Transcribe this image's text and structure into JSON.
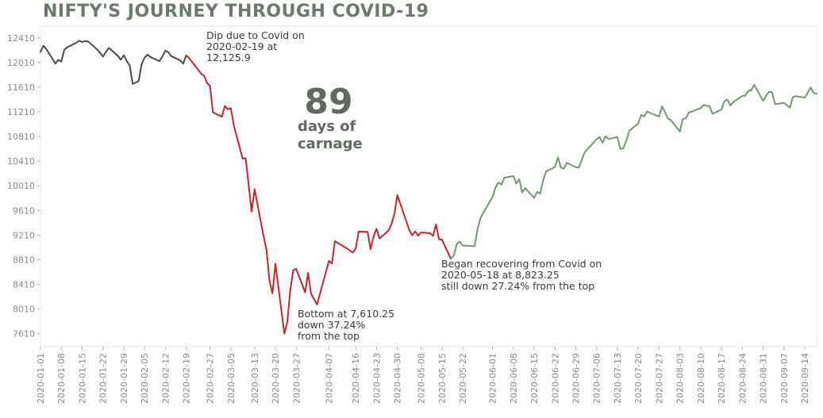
{
  "chart_data": {
    "type": "line",
    "title": "NIFTY'S JOURNEY THROUGH COVID-19",
    "xlabel": "",
    "ylabel": "",
    "ylim": [
      7400,
      12600
    ],
    "yticks": [
      7610,
      8010,
      8410,
      8810,
      9210,
      9610,
      10010,
      10410,
      10810,
      11210,
      11610,
      12010,
      12410
    ],
    "xticks": [
      "2020-01-01",
      "2020-01-08",
      "2020-01-15",
      "2020-01-22",
      "2020-01-29",
      "2020-02-05",
      "2020-02-12",
      "2020-02-19",
      "2020-02-27",
      "2020-03-05",
      "2020-03-13",
      "2020-03-20",
      "2020-03-27",
      "2020-04-07",
      "2020-04-16",
      "2020-04-23",
      "2020-04-30",
      "2020-05-08",
      "2020-05-15",
      "2020-05-22",
      "2020-06-01",
      "2020-06-08",
      "2020-06-15",
      "2020-06-22",
      "2020-06-29",
      "2020-07-06",
      "2020-07-13",
      "2020-07-20",
      "2020-07-27",
      "2020-08-03",
      "2020-08-10",
      "2020-08-17",
      "2020-08-24",
      "2020-08-31",
      "2020-09-07",
      "2020-09-14"
    ],
    "grid": false,
    "series": [
      {
        "color": "#4a4a4a",
        "points": [
          [
            "2020-01-01",
            12182
          ],
          [
            "2020-01-02",
            12282
          ],
          [
            "2020-01-03",
            12227
          ],
          [
            "2020-01-06",
            11993
          ],
          [
            "2020-01-07",
            12053
          ],
          [
            "2020-01-08",
            12025
          ],
          [
            "2020-01-09",
            12216
          ],
          [
            "2020-01-10",
            12257
          ],
          [
            "2020-01-13",
            12330
          ],
          [
            "2020-01-14",
            12363
          ],
          [
            "2020-01-15",
            12344
          ],
          [
            "2020-01-16",
            12356
          ],
          [
            "2020-01-17",
            12353
          ],
          [
            "2020-01-20",
            12224
          ],
          [
            "2020-01-21",
            12170
          ],
          [
            "2020-01-22",
            12107
          ],
          [
            "2020-01-23",
            12180
          ],
          [
            "2020-01-24",
            12248
          ],
          [
            "2020-01-27",
            12119
          ],
          [
            "2020-01-28",
            12055
          ],
          [
            "2020-01-29",
            12129
          ],
          [
            "2020-01-30",
            12036
          ],
          [
            "2020-01-31",
            11962
          ],
          [
            "2020-02-01",
            11662
          ],
          [
            "2020-02-03",
            11708
          ],
          [
            "2020-02-04",
            11980
          ],
          [
            "2020-02-05",
            12090
          ],
          [
            "2020-02-06",
            12137
          ],
          [
            "2020-02-07",
            12099
          ],
          [
            "2020-02-10",
            12032
          ],
          [
            "2020-02-11",
            12108
          ],
          [
            "2020-02-12",
            12202
          ],
          [
            "2020-02-13",
            12175
          ],
          [
            "2020-02-14",
            12113
          ],
          [
            "2020-02-17",
            12046
          ],
          [
            "2020-02-18",
            11993
          ],
          [
            "2020-02-19",
            12126
          ]
        ]
      },
      {
        "color": "#c8242b",
        "points": [
          [
            "2020-02-19",
            12126
          ],
          [
            "2020-02-20",
            12080
          ],
          [
            "2020-02-24",
            11830
          ],
          [
            "2020-02-25",
            11798
          ],
          [
            "2020-02-26",
            11678
          ],
          [
            "2020-02-27",
            11633
          ],
          [
            "2020-02-28",
            11202
          ],
          [
            "2020-03-02",
            11132
          ],
          [
            "2020-03-03",
            11304
          ],
          [
            "2020-03-04",
            11251
          ],
          [
            "2020-03-05",
            11270
          ],
          [
            "2020-03-06",
            10990
          ],
          [
            "2020-03-09",
            10451
          ],
          [
            "2020-03-10",
            10458
          ],
          [
            "2020-03-12",
            9590
          ],
          [
            "2020-03-13",
            9955
          ],
          [
            "2020-03-16",
            9197
          ],
          [
            "2020-03-17",
            8967
          ],
          [
            "2020-03-18",
            8469
          ],
          [
            "2020-03-19",
            8264
          ],
          [
            "2020-03-20",
            8745
          ],
          [
            "2020-03-23",
            7610
          ],
          [
            "2020-03-24",
            7801
          ],
          [
            "2020-03-25",
            8318
          ],
          [
            "2020-03-26",
            8641
          ],
          [
            "2020-03-27",
            8660
          ],
          [
            "2020-03-30",
            8281
          ],
          [
            "2020-03-31",
            8598
          ],
          [
            "2020-04-01",
            8254
          ],
          [
            "2020-04-03",
            8084
          ],
          [
            "2020-04-07",
            8792
          ],
          [
            "2020-04-08",
            8748
          ],
          [
            "2020-04-09",
            9112
          ],
          [
            "2020-04-13",
            8994
          ],
          [
            "2020-04-15",
            8926
          ],
          [
            "2020-04-16",
            8993
          ],
          [
            "2020-04-17",
            9267
          ],
          [
            "2020-04-20",
            9262
          ],
          [
            "2020-04-21",
            8981
          ],
          [
            "2020-04-22",
            9187
          ],
          [
            "2020-04-23",
            9314
          ],
          [
            "2020-04-24",
            9154
          ],
          [
            "2020-04-27",
            9282
          ],
          [
            "2020-04-28",
            9381
          ],
          [
            "2020-04-29",
            9553
          ],
          [
            "2020-04-30",
            9860
          ],
          [
            "2020-05-04",
            9294
          ],
          [
            "2020-05-05",
            9206
          ],
          [
            "2020-05-06",
            9270
          ],
          [
            "2020-05-07",
            9200
          ],
          [
            "2020-05-08",
            9252
          ],
          [
            "2020-05-11",
            9240
          ],
          [
            "2020-05-12",
            9197
          ],
          [
            "2020-05-13",
            9384
          ],
          [
            "2020-05-14",
            9142
          ],
          [
            "2020-05-15",
            9137
          ],
          [
            "2020-05-18",
            8823
          ]
        ]
      },
      {
        "color": "#6f9a6f",
        "points": [
          [
            "2020-05-18",
            8823
          ],
          [
            "2020-05-19",
            8880
          ],
          [
            "2020-05-20",
            9067
          ],
          [
            "2020-05-21",
            9106
          ],
          [
            "2020-05-22",
            9039
          ],
          [
            "2020-05-26",
            9030
          ],
          [
            "2020-05-27",
            9315
          ],
          [
            "2020-05-28",
            9490
          ],
          [
            "2020-05-29",
            9580
          ],
          [
            "2020-06-01",
            9826
          ],
          [
            "2020-06-02",
            9980
          ],
          [
            "2020-06-03",
            10062
          ],
          [
            "2020-06-04",
            10029
          ],
          [
            "2020-06-05",
            10142
          ],
          [
            "2020-06-08",
            10167
          ],
          [
            "2020-06-09",
            10046
          ],
          [
            "2020-06-10",
            10116
          ],
          [
            "2020-06-11",
            9902
          ],
          [
            "2020-06-12",
            9972
          ],
          [
            "2020-06-15",
            9813
          ],
          [
            "2020-06-16",
            9914
          ],
          [
            "2020-06-17",
            9881
          ],
          [
            "2020-06-18",
            10092
          ],
          [
            "2020-06-19",
            10244
          ],
          [
            "2020-06-22",
            10312
          ],
          [
            "2020-06-23",
            10471
          ],
          [
            "2020-06-24",
            10305
          ],
          [
            "2020-06-25",
            10289
          ],
          [
            "2020-06-26",
            10383
          ],
          [
            "2020-06-29",
            10312
          ],
          [
            "2020-06-30",
            10302
          ],
          [
            "2020-07-01",
            10430
          ],
          [
            "2020-07-02",
            10552
          ],
          [
            "2020-07-03",
            10607
          ],
          [
            "2020-07-06",
            10764
          ],
          [
            "2020-07-07",
            10800
          ],
          [
            "2020-07-08",
            10706
          ],
          [
            "2020-07-09",
            10814
          ],
          [
            "2020-07-10",
            10768
          ],
          [
            "2020-07-13",
            10802
          ],
          [
            "2020-07-14",
            10607
          ],
          [
            "2020-07-15",
            10618
          ],
          [
            "2020-07-16",
            10740
          ],
          [
            "2020-07-17",
            10902
          ],
          [
            "2020-07-20",
            11022
          ],
          [
            "2020-07-21",
            11162
          ],
          [
            "2020-07-22",
            11132
          ],
          [
            "2020-07-23",
            11215
          ],
          [
            "2020-07-24",
            11194
          ],
          [
            "2020-07-27",
            11132
          ],
          [
            "2020-07-28",
            11300
          ],
          [
            "2020-07-29",
            11202
          ],
          [
            "2020-07-30",
            11102
          ],
          [
            "2020-07-31",
            11073
          ],
          [
            "2020-08-03",
            10891
          ],
          [
            "2020-08-04",
            11095
          ],
          [
            "2020-08-05",
            11102
          ],
          [
            "2020-08-06",
            11200
          ],
          [
            "2020-08-07",
            11214
          ],
          [
            "2020-08-10",
            11270
          ],
          [
            "2020-08-11",
            11322
          ],
          [
            "2020-08-12",
            11308
          ],
          [
            "2020-08-13",
            11300
          ],
          [
            "2020-08-14",
            11178
          ],
          [
            "2020-08-17",
            11247
          ],
          [
            "2020-08-18",
            11385
          ],
          [
            "2020-08-19",
            11408
          ],
          [
            "2020-08-20",
            11312
          ],
          [
            "2020-08-21",
            11372
          ],
          [
            "2020-08-24",
            11466
          ],
          [
            "2020-08-25",
            11472
          ],
          [
            "2020-08-26",
            11549
          ],
          [
            "2020-08-27",
            11559
          ],
          [
            "2020-08-28",
            11647
          ],
          [
            "2020-08-31",
            11388
          ],
          [
            "2020-09-01",
            11470
          ],
          [
            "2020-09-02",
            11536
          ],
          [
            "2020-09-03",
            11527
          ],
          [
            "2020-09-04",
            11333
          ],
          [
            "2020-09-07",
            11355
          ],
          [
            "2020-09-08",
            11318
          ],
          [
            "2020-09-09",
            11278
          ],
          [
            "2020-09-10",
            11450
          ],
          [
            "2020-09-11",
            11465
          ],
          [
            "2020-09-14",
            11440
          ],
          [
            "2020-09-15",
            11521
          ],
          [
            "2020-09-16",
            11605
          ],
          [
            "2020-09-17",
            11517
          ],
          [
            "2020-09-18",
            11505
          ]
        ]
      }
    ],
    "annotations": {
      "dip": [
        "Dip due to Covid on",
        "2020-02-19 at",
        "12,125.9"
      ],
      "bottom": [
        "Bottom at 7,610.25",
        "down 37.24%",
        "from the top"
      ],
      "recovery": [
        "Began recovering from Covid on",
        "2020-05-18 at 8,823.25",
        "still down 27.24% from the top"
      ],
      "callout_number": "89",
      "callout_text": [
        "days of",
        "carnage"
      ]
    }
  }
}
